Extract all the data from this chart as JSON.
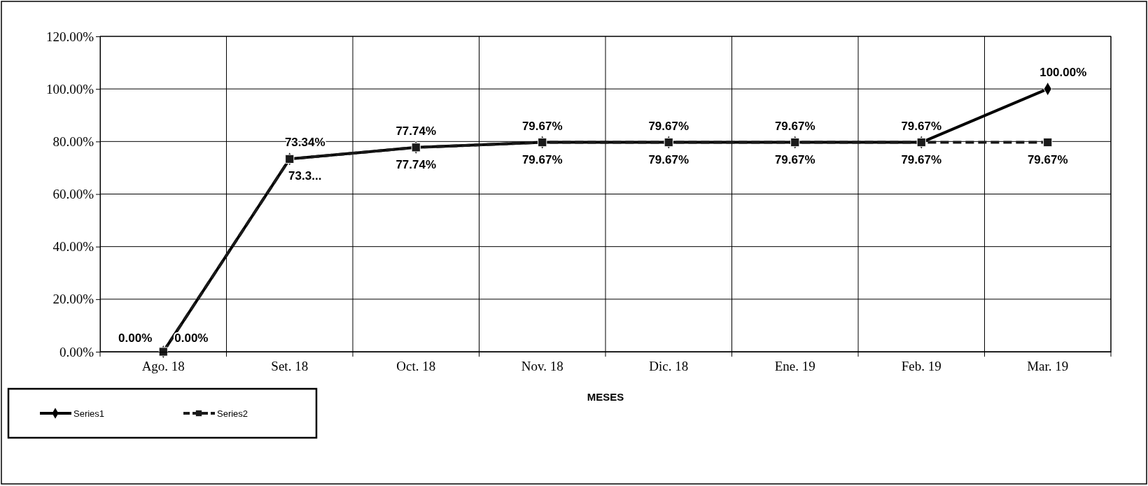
{
  "chart_data": {
    "type": "line",
    "xlabel": "MESES",
    "categories": [
      "Ago. 18",
      "Set. 18",
      "Oct. 18",
      "Nov. 18",
      "Dic. 18",
      "Ene. 19",
      "Feb. 19",
      "Mar. 19"
    ],
    "series": [
      {
        "name": "Series1",
        "color": "#000000",
        "marker": "diamond",
        "line_style": "solid",
        "values": [
          0,
          73.34,
          77.74,
          79.67,
          79.67,
          79.67,
          79.67,
          100
        ],
        "value_labels": [
          "0.00%",
          "73.34%",
          "77.74%",
          "79.67%",
          "79.67%",
          "79.67%",
          "79.67%",
          "100.00%"
        ]
      },
      {
        "name": "Series2",
        "color": "#1a1a1a",
        "marker": "square",
        "line_style": "dashed",
        "values": [
          0,
          73.34,
          77.74,
          79.67,
          79.67,
          79.67,
          79.67,
          79.67
        ],
        "value_labels": [
          "0.00%",
          "73.3...",
          "77.74%",
          "79.67%",
          "79.67%",
          "79.67%",
          "79.67%",
          "79.67%"
        ]
      }
    ],
    "ylim": [
      0,
      120
    ],
    "yticks": [
      {
        "value": 0,
        "label": "0.00%"
      },
      {
        "value": 20,
        "label": "20.00%"
      },
      {
        "value": 40,
        "label": "40.00%"
      },
      {
        "value": 60,
        "label": "60.00%"
      },
      {
        "value": 80,
        "label": "80.00%"
      },
      {
        "value": 100,
        "label": "100.00%"
      },
      {
        "value": 120,
        "label": "120.00%"
      }
    ],
    "grid": true,
    "legend": "bottom left"
  }
}
